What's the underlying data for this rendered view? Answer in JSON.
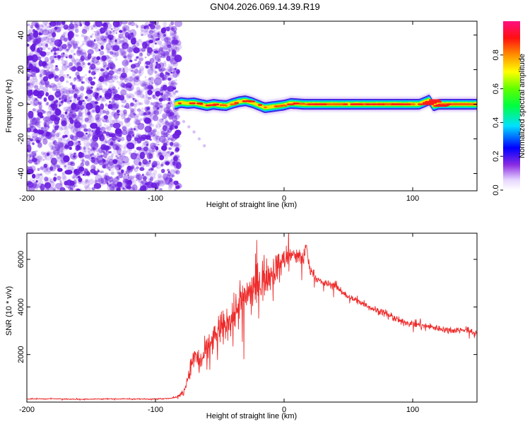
{
  "title": "GN04.2026.069.14.39.R19",
  "colors": {
    "snr_line": "#ee2a2a",
    "noise_purple": "#6a1de0",
    "axis": "#000000",
    "background": "#ffffff"
  },
  "chart_data": [
    {
      "type": "heatmap",
      "name": "spectrogram",
      "xlabel": "Height of straight line (km)",
      "ylabel": "Frequency (Hz)",
      "xlim": [
        -200,
        150
      ],
      "ylim": [
        -50,
        48
      ],
      "x_ticks": [
        -200,
        -100,
        0,
        100
      ],
      "x_tick_labels": [
        "-200",
        "-100",
        "0",
        "100"
      ],
      "y_ticks": [
        -40,
        -20,
        0,
        20,
        40
      ],
      "y_tick_labels": [
        "-40",
        "-20",
        "0",
        "20",
        "40"
      ],
      "noise_region_x": [
        -200,
        -82
      ],
      "signal_band_x": [
        -85,
        150
      ],
      "signal_track": {
        "x": [
          -85,
          -80,
          -75,
          -70,
          -65,
          -60,
          -55,
          -50,
          -45,
          -40,
          -35,
          -30,
          -25,
          -20,
          -15,
          -10,
          -5,
          0,
          5,
          10,
          15,
          20,
          30,
          40,
          50,
          60,
          70,
          80,
          90,
          100,
          105,
          110,
          113,
          116,
          120,
          130,
          140,
          150
        ],
        "y": [
          0,
          1,
          0.5,
          0.8,
          0,
          -0.8,
          0,
          -0.5,
          -0.8,
          0.5,
          1.5,
          2,
          1,
          -0.5,
          -2,
          -1.5,
          -1,
          -0.5,
          0.5,
          0.3,
          0,
          0,
          0,
          0,
          0,
          0,
          0,
          0,
          0,
          0,
          0,
          1.5,
          2.5,
          -1,
          0,
          0,
          0,
          0
        ]
      },
      "faint_tail": {
        "x": [
          -85,
          -82,
          -78,
          -74,
          -70,
          -66,
          -62
        ],
        "y": [
          -4,
          -7,
          -10,
          -13,
          -16,
          -20,
          -24
        ]
      },
      "colorbar": {
        "label": "Normalized spectral amplitude",
        "range": [
          0,
          1
        ],
        "ticks": [
          0.0,
          0.2,
          0.4,
          0.6,
          0.8
        ],
        "tick_labels": [
          "0.0",
          "0.2",
          "0.4",
          "0.6",
          "0.8"
        ]
      }
    },
    {
      "type": "line",
      "name": "snr",
      "xlabel": "Height of straight line (km)",
      "ylabel": "SNR (10 * v/v)",
      "xlim": [
        -200,
        150
      ],
      "ylim": [
        0,
        7100
      ],
      "x_ticks": [
        -200,
        -100,
        0,
        100
      ],
      "x_tick_labels": [
        "-200",
        "-100",
        "0",
        "100"
      ],
      "y_ticks": [
        2000,
        4000,
        6000
      ],
      "y_tick_labels": [
        "2000",
        "4000",
        "6000"
      ],
      "series": [
        {
          "name": "SNR",
          "x": [
            -200,
            -180,
            -160,
            -140,
            -120,
            -100,
            -85,
            -78,
            -74,
            -70,
            -65,
            -60,
            -55,
            -50,
            -45,
            -40,
            -35,
            -30,
            -25,
            -20,
            -15,
            -10,
            -5,
            0,
            5,
            10,
            15,
            17,
            20,
            25,
            30,
            40,
            50,
            60,
            70,
            80,
            90,
            100,
            110,
            120,
            130,
            140,
            150
          ],
          "y": [
            130,
            140,
            120,
            135,
            130,
            130,
            180,
            400,
            1200,
            2000,
            1700,
            2200,
            2600,
            3000,
            3200,
            3600,
            4000,
            4500,
            4700,
            5000,
            5200,
            5400,
            5700,
            6000,
            6200,
            6100,
            6000,
            6600,
            5600,
            5200,
            5000,
            4900,
            4400,
            4200,
            3900,
            3700,
            3400,
            3300,
            3200,
            3100,
            3000,
            3050,
            2900
          ],
          "spread": [
            40,
            40,
            40,
            40,
            40,
            40,
            60,
            200,
            500,
            800,
            900,
            1000,
            1100,
            1300,
            1400,
            1500,
            1700,
            1800,
            1800,
            1700,
            1500,
            1300,
            1100,
            1000,
            800,
            700,
            600,
            500,
            400,
            350,
            300,
            300,
            250,
            250,
            250,
            250,
            250,
            250,
            250,
            250,
            250,
            250,
            250
          ]
        }
      ]
    }
  ]
}
